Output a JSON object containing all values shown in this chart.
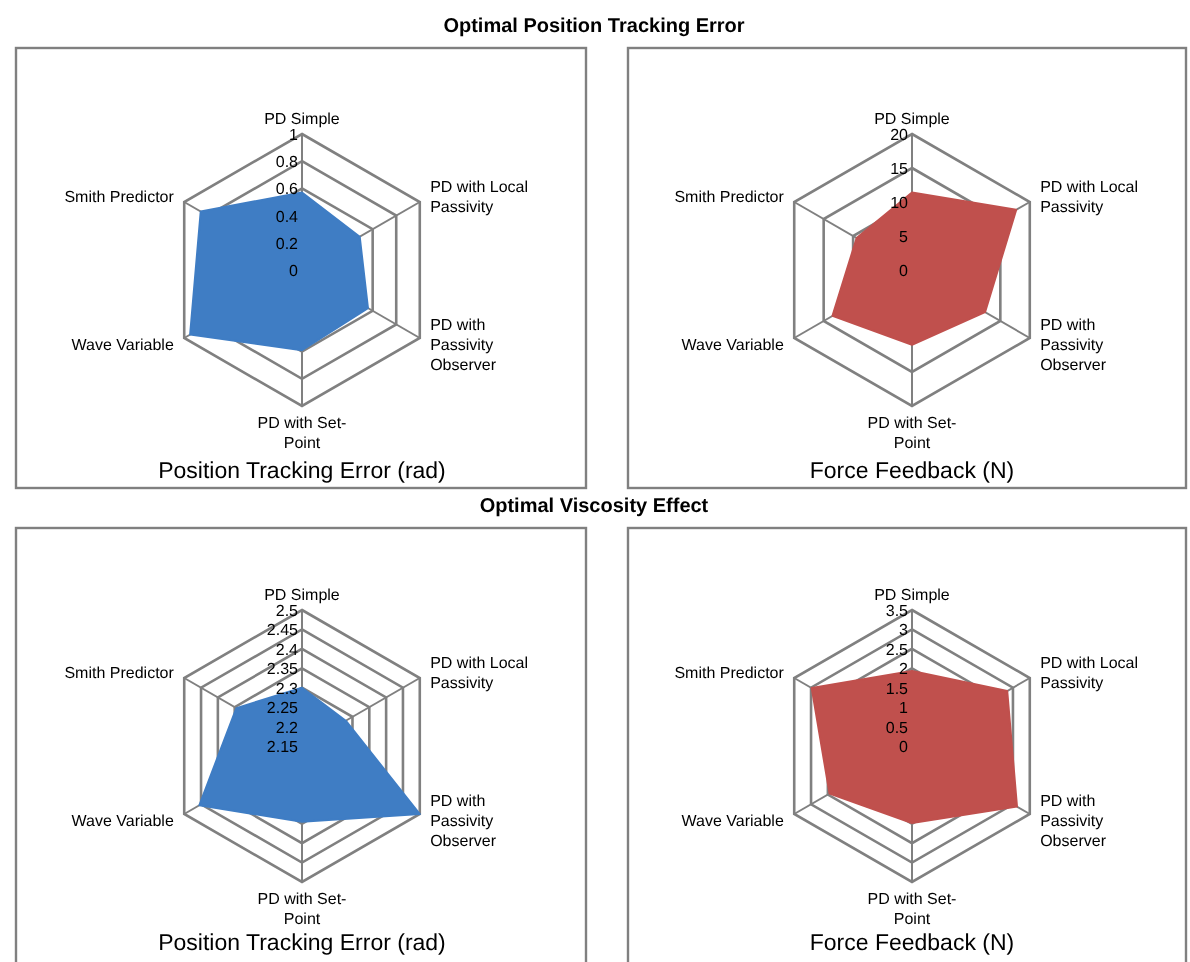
{
  "chart_data": [
    {
      "type": "radar",
      "title": "Optimal Position Tracking  Error",
      "xlabel": "Position Tracking Error (rad)",
      "categories": [
        "PD Simple",
        "PD with Local Passivity",
        "PD with Passivity Observer",
        "PD with Set-Point",
        "Wave Variable",
        "Smith Predictor"
      ],
      "ylim": [
        0,
        1
      ],
      "yticks": [
        0,
        0.2,
        0.4,
        0.6,
        0.8,
        1
      ],
      "series": [
        {
          "color": "#3f7dc4",
          "values": [
            0.57,
            0.49,
            0.56,
            0.59,
            0.95,
            0.86
          ]
        }
      ]
    },
    {
      "type": "radar",
      "xlabel": "Force Feedback (N)",
      "categories": [
        "PD Simple",
        "PD with Local Passivity",
        "PD with Passivity Observer",
        "PD with Set-Point",
        "Wave Variable",
        "Smith Predictor"
      ],
      "ylim": [
        0,
        20
      ],
      "yticks": [
        0,
        5,
        10,
        15,
        20
      ],
      "series": [
        {
          "color": "#c0504d",
          "values": [
            11.4,
            17.7,
            12.4,
            11,
            13.5,
            9.4
          ]
        }
      ]
    },
    {
      "type": "radar",
      "title": "Optimal Viscosity Effect",
      "xlabel": "Position Tracking Error (rad)",
      "categories": [
        "PD Simple",
        "PD with Local Passivity",
        "PD with Passivity Observer",
        "PD with Set-Point",
        "Wave Variable",
        "Smith Predictor"
      ],
      "ylim": [
        2.15,
        2.5
      ],
      "yticks": [
        2.15,
        2.2,
        2.25,
        2.3,
        2.35,
        2.4,
        2.45,
        2.5
      ],
      "series": [
        {
          "color": "#3f7dc4",
          "values": [
            2.3,
            2.28,
            2.5,
            2.345,
            2.455,
            2.345
          ]
        }
      ]
    },
    {
      "type": "radar",
      "xlabel": "Force Feedback (N)",
      "categories": [
        "PD Simple",
        "PD with Local Passivity",
        "PD with Passivity Observer",
        "PD with Set-Point",
        "Wave Variable",
        "Smith Predictor"
      ],
      "ylim": [
        0,
        3.5
      ],
      "yticks": [
        0,
        0.5,
        1,
        1.5,
        2,
        2.5,
        3,
        3.5
      ],
      "series": [
        {
          "color": "#c0504d",
          "values": [
            1.93,
            2.83,
            3.12,
            1.98,
            2.45,
            2.98
          ]
        }
      ]
    }
  ]
}
